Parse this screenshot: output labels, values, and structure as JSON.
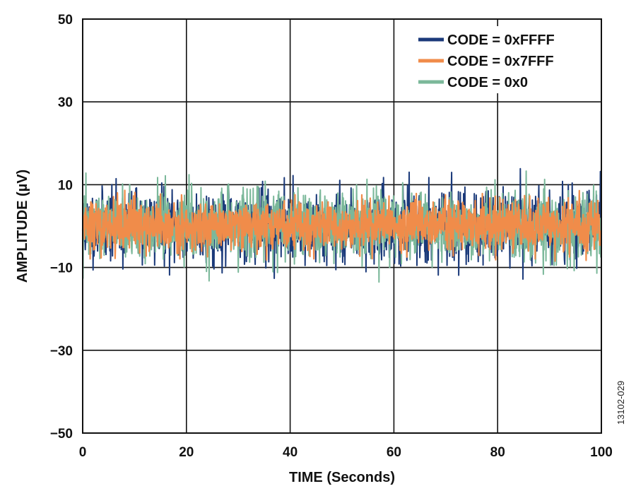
{
  "figure_id": "13102-029",
  "chart_data": {
    "type": "line",
    "title": "",
    "xlabel": "TIME (Seconds)",
    "ylabel": "AMPLITUDE (µV)",
    "xlim": [
      0,
      100
    ],
    "ylim": [
      -50,
      50
    ],
    "x_ticks": [
      "0",
      "20",
      "40",
      "60",
      "80",
      "100"
    ],
    "y_ticks": [
      "50",
      "30",
      "10",
      "−10",
      "−30",
      "−50"
    ],
    "grid": true,
    "legend_position": "top-right",
    "series": [
      {
        "name": "CODE = 0xFFFF",
        "color": "#1b3a7a",
        "approx_peak_uV": 14,
        "approx_rms_uV": 4.2
      },
      {
        "name": "CODE = 0x0",
        "color": "#7bb89a",
        "approx_peak_uV": 17,
        "approx_rms_uV": 4.0
      },
      {
        "name": "CODE = 0x7FFF",
        "color": "#f08c4a",
        "approx_peak_uV": 9,
        "approx_rms_uV": 3.0
      }
    ]
  }
}
